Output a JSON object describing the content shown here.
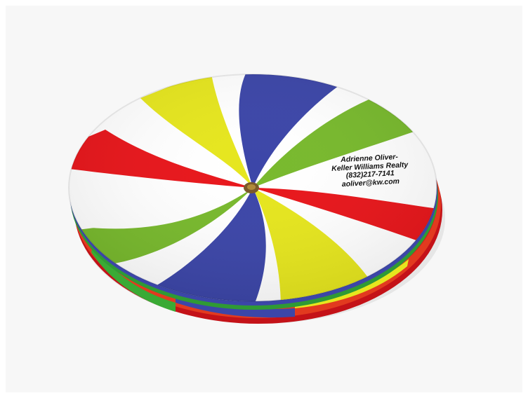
{
  "image": {
    "subject": "pinwheel-swirl-coaster",
    "colors": {
      "red": "#e8161b",
      "yellow": "#e6e61e",
      "blue": "#3c46a8",
      "green": "#78b92d",
      "white": "#ffffff",
      "hub": "#7a5a2a",
      "background": "#f7f7f7"
    }
  },
  "imprint": {
    "line1": "Adrienne Oliver-",
    "line2": "Keller Williams Realty",
    "line3": "(832)217-7141",
    "line4": "aoliver@kw.com"
  }
}
